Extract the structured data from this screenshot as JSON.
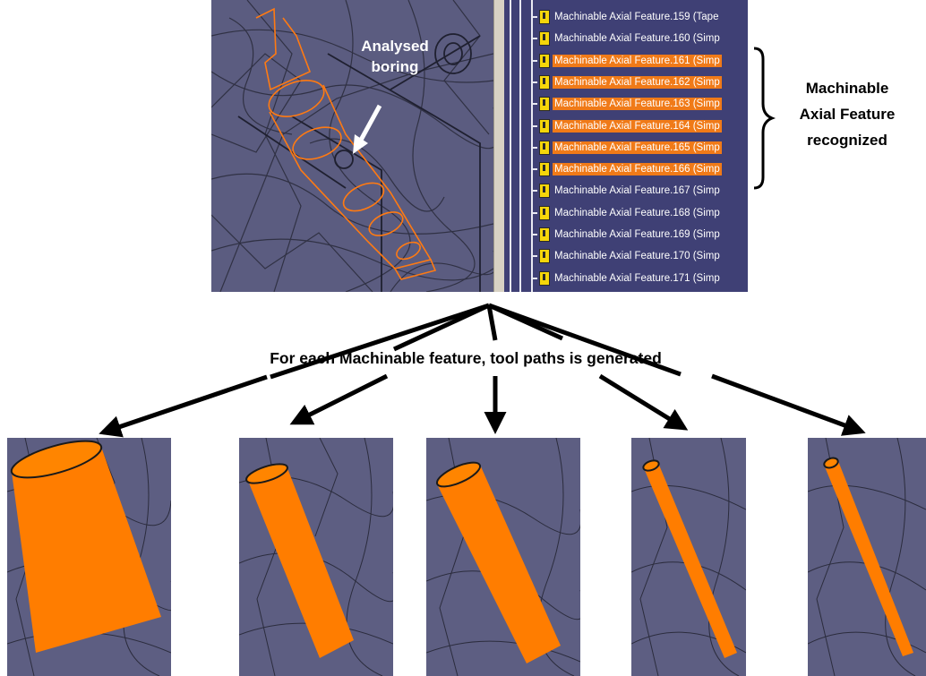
{
  "annotation": {
    "analysed_boring": "Analysed boring",
    "analysed_line1": "Analysed",
    "analysed_line2": "boring",
    "recognized_line1": "Machinable",
    "recognized_line2": "Axial Feature",
    "recognized_line3": "recognized",
    "caption": "For each Machinable feature, tool paths is generated"
  },
  "feature_tree": {
    "items": [
      {
        "label": "Machinable Axial Feature.159 (Tape",
        "highlighted": false
      },
      {
        "label": "Machinable Axial Feature.160 (Simp",
        "highlighted": false
      },
      {
        "label": "Machinable Axial Feature.161 (Simp",
        "highlighted": true
      },
      {
        "label": "Machinable Axial Feature.162 (Simp",
        "highlighted": true
      },
      {
        "label": "Machinable Axial Feature.163 (Simp",
        "highlighted": true
      },
      {
        "label": "Machinable Axial Feature.164 (Simp",
        "highlighted": true
      },
      {
        "label": "Machinable Axial Feature.165 (Simp",
        "highlighted": true
      },
      {
        "label": "Machinable Axial Feature.166 (Simp",
        "highlighted": true
      },
      {
        "label": "Machinable Axial Feature.167 (Simp",
        "highlighted": false
      },
      {
        "label": "Machinable Axial Feature.168 (Simp",
        "highlighted": false
      },
      {
        "label": "Machinable Axial Feature.169 (Simp",
        "highlighted": false
      },
      {
        "label": "Machinable Axial Feature.170 (Simp",
        "highlighted": false
      },
      {
        "label": "Machinable Axial Feature.171 (Simp",
        "highlighted": false
      }
    ]
  },
  "colors": {
    "highlight": "#f07a18",
    "toolpath_orange": "#ff7a00",
    "cad_background": "#5d5e82",
    "tree_background": "#3f4075"
  }
}
